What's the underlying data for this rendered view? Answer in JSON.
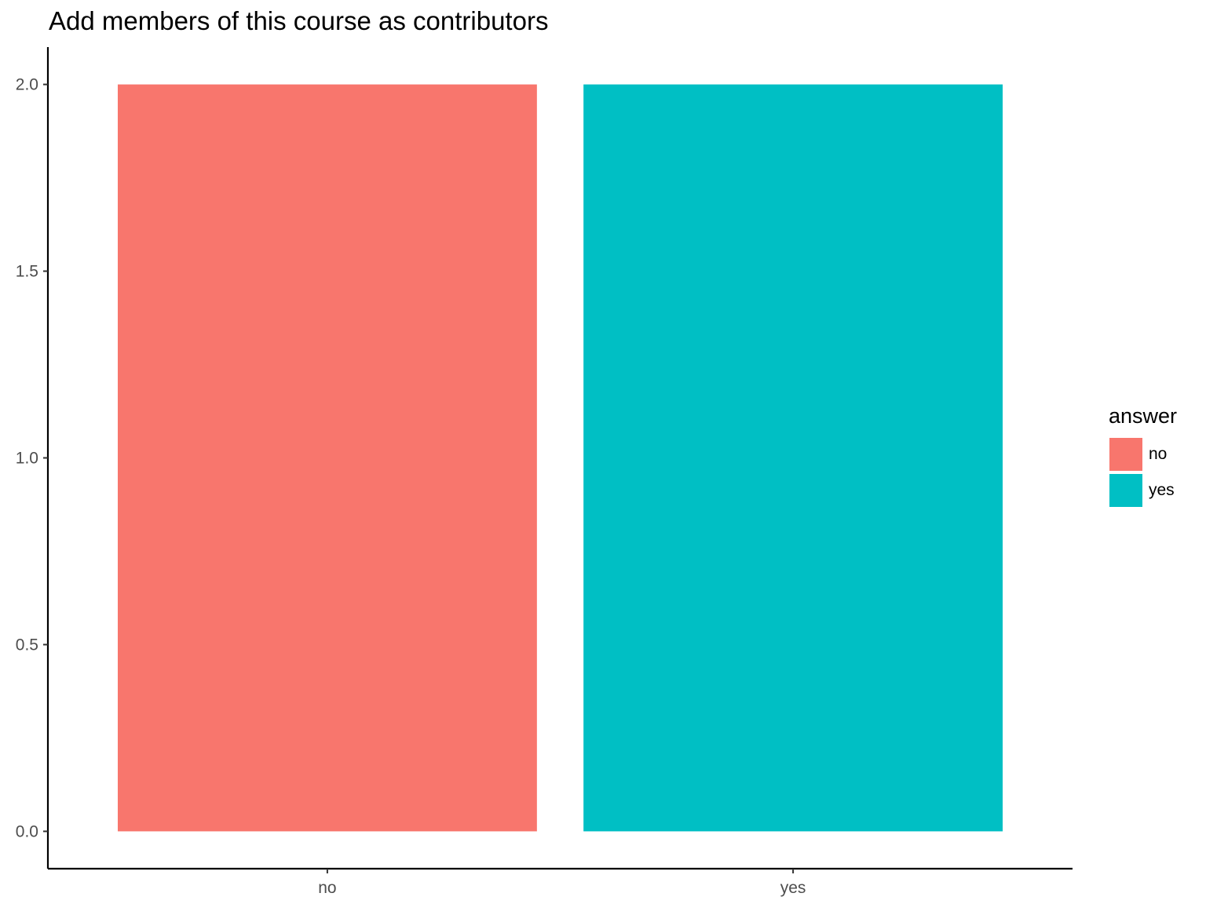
{
  "chart_data": {
    "type": "bar",
    "title": "Add members of this course as contributors",
    "xlabel": "",
    "ylabel": "",
    "categories": [
      "no",
      "yes"
    ],
    "values": [
      2,
      2
    ],
    "colors": [
      "#F8766D",
      "#00BFC4"
    ],
    "ylim": [
      -0.1,
      2.1
    ],
    "yticks": [
      0.0,
      0.5,
      1.0,
      1.5,
      2.0
    ],
    "ytick_labels": [
      "0.0",
      "0.5",
      "1.0",
      "1.5",
      "2.0"
    ],
    "grid": false,
    "legend": {
      "title": "answer",
      "position": "right",
      "entries": [
        {
          "label": "no",
          "color": "#F8766D"
        },
        {
          "label": "yes",
          "color": "#00BFC4"
        }
      ]
    }
  }
}
